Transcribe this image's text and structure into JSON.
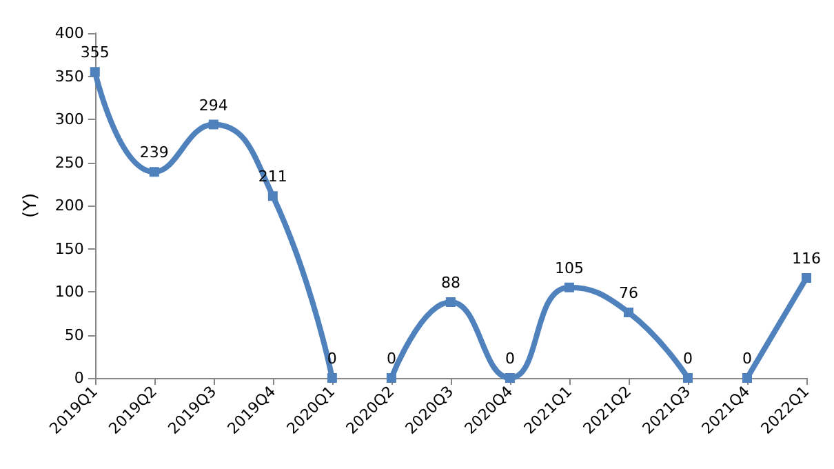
{
  "chart_data": {
    "type": "line",
    "ylabel": "(Y)",
    "categories": [
      "2019Q1",
      "2019Q2",
      "2019Q3",
      "2019Q4",
      "2020Q1",
      "2020Q2",
      "2020Q3",
      "2020Q4",
      "2021Q1",
      "2021Q2",
      "2021Q3",
      "2021Q4",
      "2022Q1"
    ],
    "series": [
      {
        "color": "#4f81bd",
        "values": [
          355,
          239,
          294,
          211,
          0,
          null,
          null,
          null,
          null,
          null,
          null,
          null,
          null
        ]
      },
      {
        "color": "#4f81bd",
        "values": [
          null,
          null,
          null,
          null,
          null,
          0,
          88,
          0,
          105,
          76,
          0,
          null,
          null
        ]
      },
      {
        "color": "#4f81bd",
        "values": [
          null,
          null,
          null,
          null,
          null,
          null,
          null,
          null,
          null,
          null,
          null,
          0,
          116
        ]
      }
    ],
    "ylim": [
      0,
      400
    ],
    "yticks": [
      0,
      50,
      100,
      150,
      200,
      250,
      300,
      350,
      400
    ],
    "grid": false,
    "data_labels": true,
    "marker": "square",
    "line_style": "solid"
  }
}
